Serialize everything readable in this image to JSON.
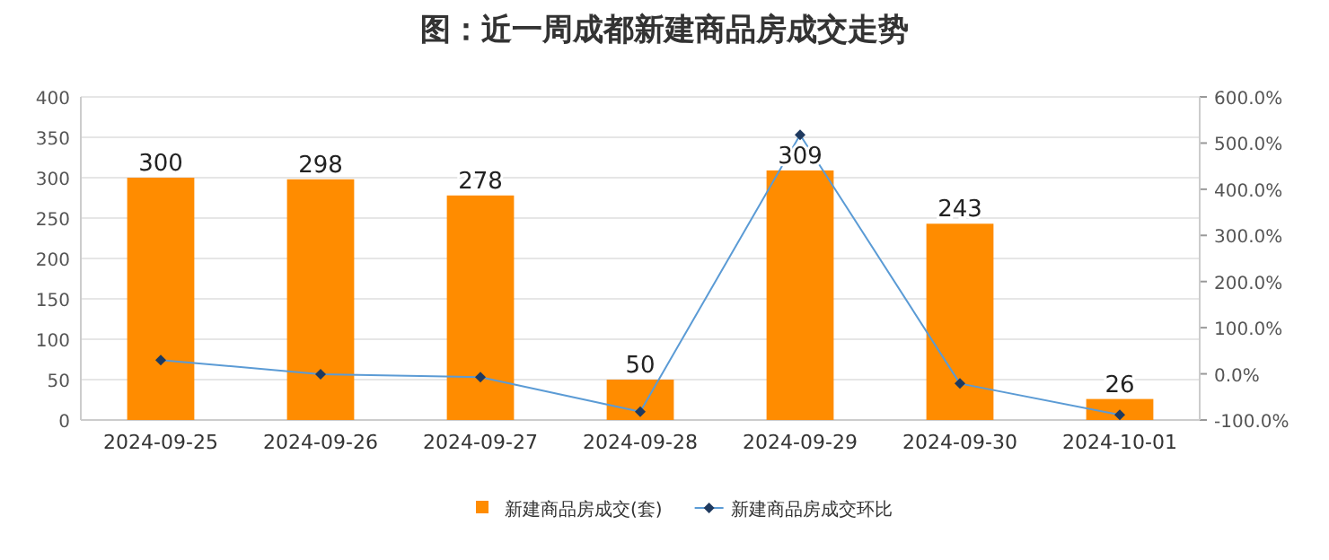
{
  "chart_data": {
    "type": "bar",
    "title": "图：近一周成都新建商品房成交走势",
    "categories": [
      "2024-09-25",
      "2024-09-26",
      "2024-09-27",
      "2024-09-28",
      "2024-09-29",
      "2024-09-30",
      "2024-10-01"
    ],
    "series": [
      {
        "name": "新建商品房成交(套)",
        "color": "#ff8c00",
        "values": [
          300,
          298,
          278,
          50,
          309,
          243,
          26
        ],
        "value_labels": [
          "300",
          "298",
          "278",
          "50",
          "309",
          "243",
          "26"
        ]
      },
      {
        "name": "新建商品房成交环比",
        "type": "line",
        "axis": "y2",
        "color": "#5b9bd5",
        "marker": "diamond",
        "values": [
          30,
          -1,
          -7,
          -82,
          518,
          -21,
          -89
        ]
      }
    ],
    "ylim": [
      0,
      400
    ],
    "yticks": [
      0,
      50,
      100,
      150,
      200,
      250,
      300,
      350,
      400
    ],
    "y2lim": [
      -100,
      600
    ],
    "y2ticks": [
      {
        "value": -100,
        "label": "-100.0%"
      },
      {
        "value": 0,
        "label": "0.0%"
      },
      {
        "value": 100,
        "label": "100.0%"
      },
      {
        "value": 200,
        "label": "200.0%"
      },
      {
        "value": 300,
        "label": "300.0%"
      },
      {
        "value": 400,
        "label": "400.0%"
      },
      {
        "value": 500,
        "label": "500.0%"
      },
      {
        "value": 600,
        "label": "600.0%"
      }
    ],
    "grid": "y",
    "legend": "bottom"
  }
}
